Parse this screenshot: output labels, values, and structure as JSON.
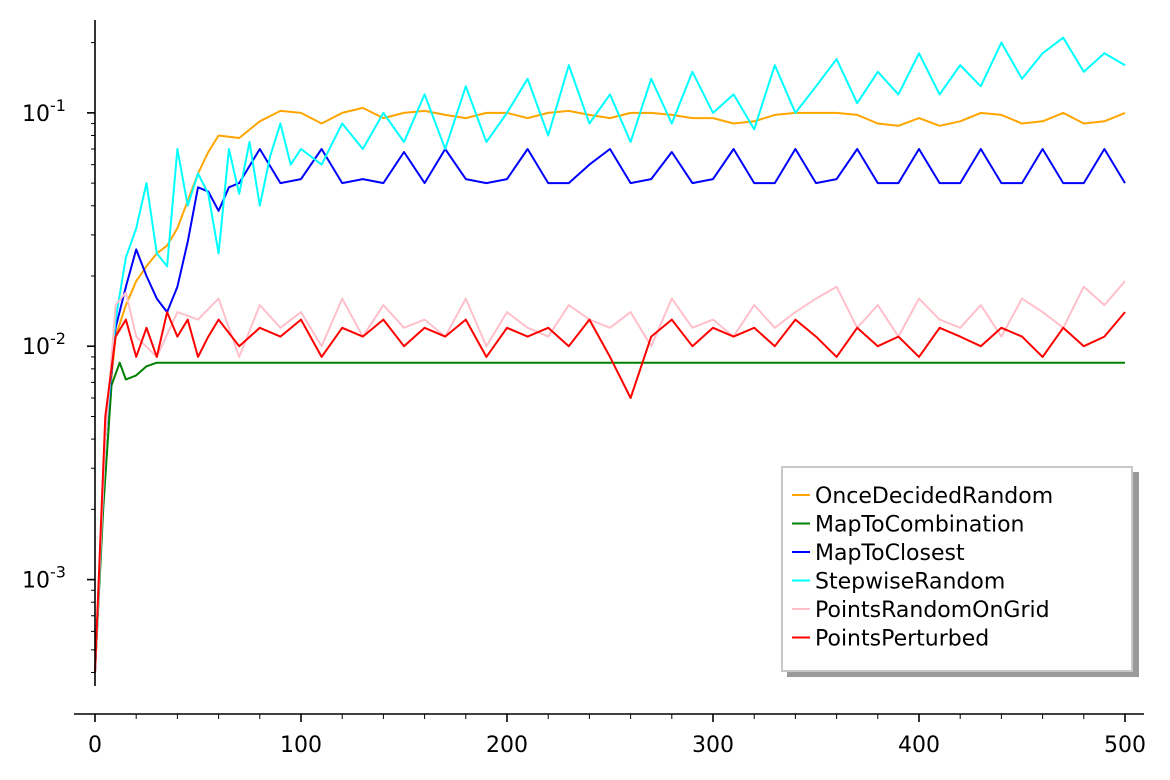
{
  "chart_data": {
    "type": "line",
    "title": "",
    "xlabel": "",
    "ylabel": "",
    "xlim": [
      0,
      500
    ],
    "ylim": [
      0.00035,
      0.25
    ],
    "yscale": "log",
    "grid": false,
    "legend_position": "bottom-right",
    "x_ticks": [
      {
        "value": 0,
        "label": "0"
      },
      {
        "value": 100,
        "label": "100"
      },
      {
        "value": 200,
        "label": "200"
      },
      {
        "value": 300,
        "label": "300"
      },
      {
        "value": 400,
        "label": "400"
      },
      {
        "value": 500,
        "label": "500"
      }
    ],
    "y_ticks": [
      {
        "value": 0.001,
        "base": "10",
        "exp": "-3"
      },
      {
        "value": 0.01,
        "base": "10",
        "exp": "-2"
      },
      {
        "value": 0.1,
        "base": "10",
        "exp": "-1"
      }
    ],
    "series": [
      {
        "name": "OnceDecidedRandom",
        "color": "#ffa500",
        "x": [
          0,
          5,
          10,
          15,
          20,
          25,
          30,
          35,
          40,
          45,
          50,
          55,
          60,
          70,
          80,
          90,
          100,
          110,
          120,
          130,
          140,
          150,
          160,
          170,
          180,
          190,
          200,
          210,
          220,
          230,
          240,
          250,
          260,
          270,
          280,
          290,
          300,
          310,
          320,
          330,
          340,
          350,
          360,
          370,
          380,
          390,
          400,
          410,
          420,
          430,
          440,
          450,
          460,
          470,
          480,
          490,
          500
        ],
        "y": [
          0.0004,
          0.004,
          0.011,
          0.015,
          0.019,
          0.022,
          0.025,
          0.027,
          0.032,
          0.042,
          0.055,
          0.068,
          0.08,
          0.078,
          0.092,
          0.102,
          0.1,
          0.09,
          0.1,
          0.105,
          0.095,
          0.1,
          0.102,
          0.098,
          0.095,
          0.1,
          0.1,
          0.095,
          0.1,
          0.102,
          0.098,
          0.095,
          0.1,
          0.1,
          0.098,
          0.095,
          0.095,
          0.09,
          0.092,
          0.098,
          0.1,
          0.1,
          0.1,
          0.098,
          0.09,
          0.088,
          0.095,
          0.088,
          0.092,
          0.1,
          0.098,
          0.09,
          0.092,
          0.1,
          0.09,
          0.092,
          0.1
        ]
      },
      {
        "name": "MapToCombination",
        "color": "#008000",
        "x": [
          0,
          4,
          8,
          12,
          15,
          20,
          25,
          30,
          500
        ],
        "y": [
          0.0004,
          0.002,
          0.0068,
          0.0085,
          0.0072,
          0.0075,
          0.0082,
          0.0085,
          0.0085
        ]
      },
      {
        "name": "MapToClosest",
        "color": "#0000ff",
        "x": [
          0,
          5,
          10,
          15,
          20,
          25,
          30,
          35,
          40,
          45,
          50,
          55,
          60,
          65,
          70,
          80,
          90,
          100,
          110,
          120,
          130,
          140,
          150,
          160,
          170,
          180,
          190,
          200,
          210,
          220,
          230,
          240,
          250,
          260,
          270,
          280,
          290,
          300,
          310,
          320,
          330,
          340,
          350,
          360,
          370,
          380,
          390,
          400,
          410,
          420,
          430,
          440,
          450,
          460,
          470,
          480,
          490,
          500
        ],
        "y": [
          0.0004,
          0.004,
          0.012,
          0.018,
          0.026,
          0.02,
          0.016,
          0.014,
          0.018,
          0.028,
          0.048,
          0.046,
          0.038,
          0.048,
          0.05,
          0.07,
          0.05,
          0.052,
          0.07,
          0.05,
          0.052,
          0.05,
          0.068,
          0.05,
          0.07,
          0.052,
          0.05,
          0.052,
          0.07,
          0.05,
          0.05,
          0.06,
          0.07,
          0.05,
          0.052,
          0.068,
          0.05,
          0.052,
          0.07,
          0.05,
          0.05,
          0.07,
          0.05,
          0.052,
          0.07,
          0.05,
          0.05,
          0.07,
          0.05,
          0.05,
          0.07,
          0.05,
          0.05,
          0.07,
          0.05,
          0.05,
          0.07,
          0.05
        ]
      },
      {
        "name": "StepwiseRandom",
        "color": "#00ffff",
        "x": [
          0,
          5,
          10,
          15,
          20,
          25,
          30,
          35,
          40,
          45,
          50,
          55,
          60,
          65,
          70,
          75,
          80,
          85,
          90,
          95,
          100,
          110,
          120,
          130,
          140,
          150,
          160,
          170,
          180,
          190,
          200,
          210,
          220,
          230,
          240,
          250,
          260,
          270,
          280,
          290,
          300,
          310,
          320,
          330,
          340,
          350,
          360,
          370,
          380,
          390,
          400,
          410,
          420,
          430,
          440,
          450,
          460,
          470,
          480,
          490,
          500
        ],
        "y": [
          0.0004,
          0.004,
          0.013,
          0.024,
          0.032,
          0.05,
          0.025,
          0.022,
          0.07,
          0.04,
          0.055,
          0.045,
          0.025,
          0.07,
          0.045,
          0.075,
          0.04,
          0.065,
          0.09,
          0.06,
          0.07,
          0.06,
          0.09,
          0.07,
          0.1,
          0.075,
          0.12,
          0.07,
          0.13,
          0.075,
          0.1,
          0.14,
          0.08,
          0.16,
          0.09,
          0.12,
          0.075,
          0.14,
          0.09,
          0.15,
          0.1,
          0.12,
          0.085,
          0.16,
          0.1,
          0.13,
          0.17,
          0.11,
          0.15,
          0.12,
          0.18,
          0.12,
          0.16,
          0.13,
          0.2,
          0.14,
          0.18,
          0.21,
          0.15,
          0.18,
          0.16
        ]
      },
      {
        "name": "PointsRandomOnGrid",
        "color": "#ffc0cb",
        "x": [
          0,
          5,
          10,
          15,
          20,
          30,
          40,
          50,
          60,
          70,
          80,
          90,
          100,
          110,
          120,
          130,
          140,
          150,
          160,
          170,
          180,
          190,
          200,
          210,
          220,
          230,
          240,
          250,
          260,
          270,
          280,
          290,
          300,
          310,
          320,
          330,
          340,
          350,
          360,
          370,
          380,
          390,
          400,
          410,
          420,
          430,
          440,
          450,
          460,
          470,
          480,
          490,
          500
        ],
        "y": [
          0.0004,
          0.004,
          0.015,
          0.017,
          0.011,
          0.009,
          0.014,
          0.013,
          0.016,
          0.009,
          0.015,
          0.012,
          0.014,
          0.01,
          0.016,
          0.011,
          0.015,
          0.012,
          0.013,
          0.011,
          0.016,
          0.01,
          0.014,
          0.012,
          0.011,
          0.015,
          0.013,
          0.012,
          0.014,
          0.01,
          0.016,
          0.012,
          0.013,
          0.011,
          0.015,
          0.012,
          0.014,
          0.016,
          0.018,
          0.012,
          0.015,
          0.011,
          0.016,
          0.013,
          0.012,
          0.015,
          0.011,
          0.016,
          0.014,
          0.012,
          0.018,
          0.015,
          0.019
        ]
      },
      {
        "name": "PointsPerturbed",
        "color": "#ff0000",
        "x": [
          0,
          5,
          10,
          15,
          20,
          25,
          30,
          35,
          40,
          45,
          50,
          55,
          60,
          70,
          80,
          90,
          100,
          110,
          120,
          130,
          140,
          150,
          160,
          170,
          180,
          190,
          200,
          210,
          220,
          230,
          240,
          250,
          260,
          270,
          280,
          290,
          300,
          310,
          320,
          330,
          340,
          350,
          360,
          370,
          380,
          390,
          400,
          410,
          420,
          430,
          440,
          450,
          460,
          470,
          480,
          490,
          500
        ],
        "y": [
          0.0004,
          0.005,
          0.011,
          0.013,
          0.009,
          0.012,
          0.009,
          0.014,
          0.011,
          0.013,
          0.009,
          0.011,
          0.013,
          0.01,
          0.012,
          0.011,
          0.013,
          0.009,
          0.012,
          0.011,
          0.013,
          0.01,
          0.012,
          0.011,
          0.013,
          0.009,
          0.012,
          0.011,
          0.012,
          0.01,
          0.013,
          0.009,
          0.006,
          0.011,
          0.013,
          0.01,
          0.012,
          0.011,
          0.012,
          0.01,
          0.013,
          0.011,
          0.009,
          0.012,
          0.01,
          0.011,
          0.009,
          0.012,
          0.011,
          0.01,
          0.012,
          0.011,
          0.009,
          0.012,
          0.01,
          0.011,
          0.014
        ]
      }
    ]
  }
}
